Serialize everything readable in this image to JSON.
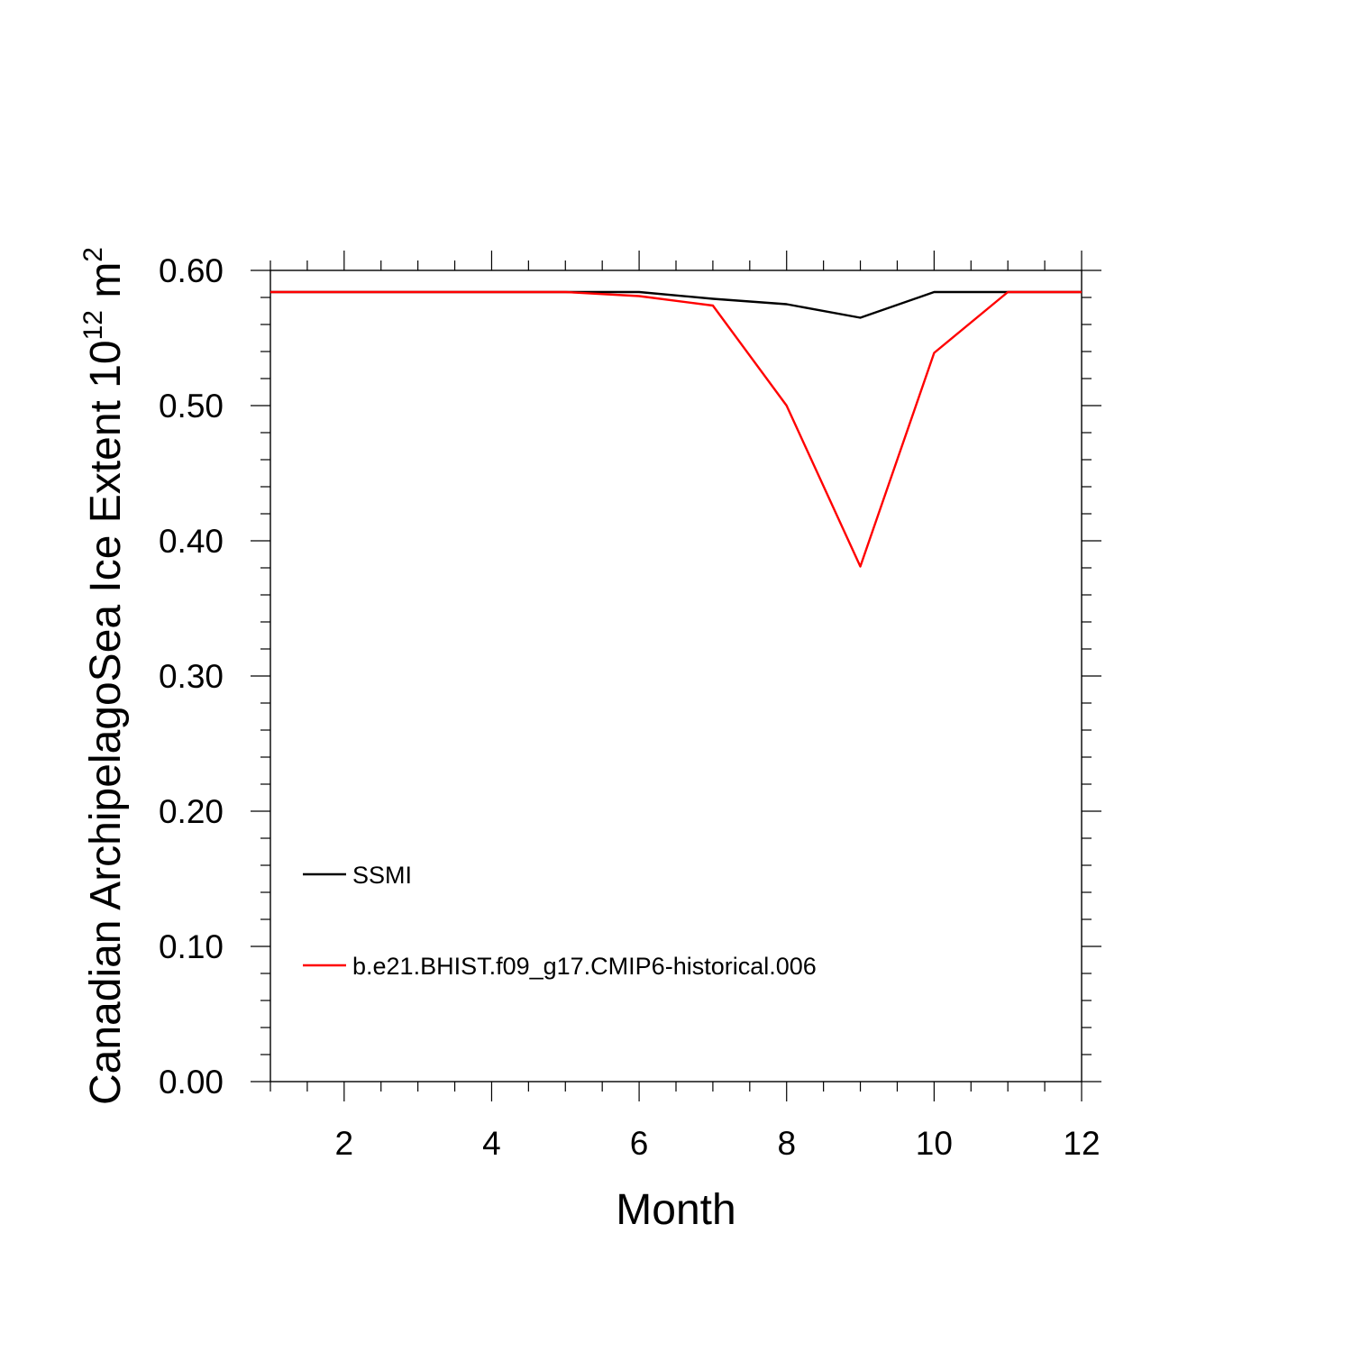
{
  "chart_data": {
    "type": "line",
    "xlabel": "Month",
    "ylabel_main": "Canadian ArchipelagoSea Ice Extent 10",
    "ylabel_exp": "12",
    "ylabel_unit": " m",
    "ylabel_unit_exp": "2",
    "xlim": [
      1,
      12
    ],
    "ylim": [
      0,
      0.6
    ],
    "x_ticks": [
      2,
      4,
      6,
      8,
      10,
      12
    ],
    "x_tick_labels": [
      "2",
      "4",
      "6",
      "8",
      "10",
      "12"
    ],
    "y_ticks": [
      0,
      0.1,
      0.2,
      0.3,
      0.4,
      0.5,
      0.6
    ],
    "y_tick_labels": [
      "0.00",
      "0.10",
      "0.20",
      "0.30",
      "0.40",
      "0.50",
      "0.60"
    ],
    "x": [
      1,
      2,
      3,
      4,
      5,
      6,
      7,
      8,
      9,
      10,
      11,
      12
    ],
    "series": [
      {
        "name": "SSMI",
        "color": "#000000",
        "values": [
          0.584,
          0.584,
          0.584,
          0.584,
          0.584,
          0.584,
          0.579,
          0.575,
          0.565,
          0.584,
          0.584,
          0.584
        ]
      },
      {
        "name": "b.e21.BHIST.f09_g17.CMIP6-historical.006",
        "color": "#ff0000",
        "values": [
          0.584,
          0.584,
          0.584,
          0.584,
          0.584,
          0.581,
          0.574,
          0.5,
          0.381,
          0.539,
          0.584,
          0.584
        ]
      }
    ],
    "legend_placement": "bottom-left inside",
    "grid": false
  }
}
